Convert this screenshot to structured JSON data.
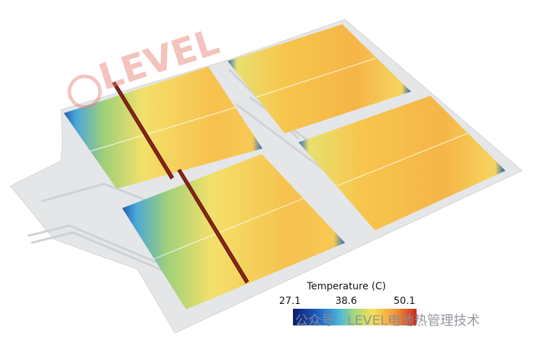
{
  "logo": {
    "text": "LEVEL"
  },
  "legend": {
    "title": "Temperature (C)",
    "ticks": [
      27.1,
      38.6,
      50.1
    ]
  },
  "watermark": {
    "text": "公众号 · LEVEL电池热管理技术"
  }
}
